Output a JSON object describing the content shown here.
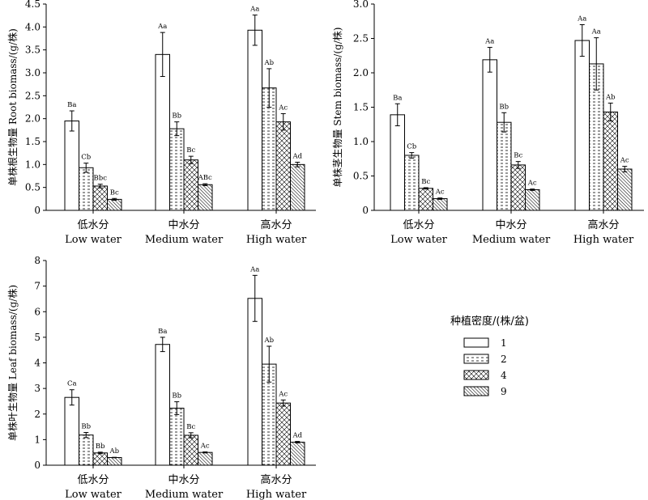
{
  "legend": {
    "title": "种植密度/(株/盆)",
    "items": [
      {
        "label": "1",
        "pattern": "empty"
      },
      {
        "label": "2",
        "pattern": "dashes"
      },
      {
        "label": "4",
        "pattern": "crosshatch"
      },
      {
        "label": "9",
        "pattern": "diagonal"
      }
    ]
  },
  "chart_data": [
    {
      "type": "bar",
      "ylabel": "单株根生物量 Root biomass/(g/株)",
      "ylim": [
        0,
        4.5
      ],
      "yticks": [
        "0",
        "0.5",
        "1.0",
        "1.5",
        "2.0",
        "2.5",
        "3.0",
        "3.5",
        "4.0",
        "4.5"
      ],
      "categories": [
        {
          "cn": "低水分",
          "en": "Low water"
        },
        {
          "cn": "中水分",
          "en": "Medium water"
        },
        {
          "cn": "高水分",
          "en": "High water"
        }
      ],
      "series": [
        {
          "name": "1",
          "values": [
            1.95,
            3.4,
            3.93
          ],
          "errors": [
            0.22,
            0.48,
            0.33
          ],
          "labels": [
            "Ba",
            "Aa",
            "Aa"
          ]
        },
        {
          "name": "2",
          "values": [
            0.93,
            1.78,
            2.67
          ],
          "errors": [
            0.1,
            0.15,
            0.42
          ],
          "labels": [
            "Cb",
            "Bb",
            "Ab"
          ]
        },
        {
          "name": "4",
          "values": [
            0.53,
            1.1,
            1.93
          ],
          "errors": [
            0.04,
            0.08,
            0.18
          ],
          "labels": [
            "Bbc",
            "Bc",
            "Ac"
          ]
        },
        {
          "name": "9",
          "values": [
            0.24,
            0.56,
            1.0
          ],
          "errors": [
            0.02,
            0.02,
            0.05
          ],
          "labels": [
            "Bc",
            "ABc",
            "Ad"
          ]
        }
      ]
    },
    {
      "type": "bar",
      "ylabel": "单株茎生物量 Stem biomass/(g/株)",
      "ylim": [
        0,
        3.0
      ],
      "yticks": [
        "0",
        "0.5",
        "1.0",
        "1.5",
        "2.0",
        "2.5",
        "3.0"
      ],
      "categories": [
        {
          "cn": "低水分",
          "en": "Low water"
        },
        {
          "cn": "中水分",
          "en": "Medium water"
        },
        {
          "cn": "高水分",
          "en": "High water"
        }
      ],
      "series": [
        {
          "name": "1",
          "values": [
            1.39,
            2.19,
            2.47
          ],
          "errors": [
            0.16,
            0.18,
            0.23
          ],
          "labels": [
            "Ba",
            "Aa",
            "Aa"
          ]
        },
        {
          "name": "2",
          "values": [
            0.8,
            1.28,
            2.13
          ],
          "errors": [
            0.04,
            0.14,
            0.38
          ],
          "labels": [
            "Cb",
            "Bb",
            "Aa"
          ]
        },
        {
          "name": "4",
          "values": [
            0.32,
            0.66,
            1.43
          ],
          "errors": [
            0.01,
            0.05,
            0.13
          ],
          "labels": [
            "Bc",
            "Bc",
            "Ab"
          ]
        },
        {
          "name": "9",
          "values": [
            0.17,
            0.3,
            0.6
          ],
          "errors": [
            0.01,
            0.01,
            0.04
          ],
          "labels": [
            "Ac",
            "Ac",
            "Ac"
          ]
        }
      ]
    },
    {
      "type": "bar",
      "ylabel": "单株叶生物量 Leaf biomass/(g/株)",
      "ylim": [
        0,
        8
      ],
      "yticks": [
        "0",
        "1",
        "2",
        "3",
        "4",
        "5",
        "6",
        "7",
        "8"
      ],
      "categories": [
        {
          "cn": "低水分",
          "en": "Low water"
        },
        {
          "cn": "中水分",
          "en": "Medium water"
        },
        {
          "cn": "高水分",
          "en": "High water"
        }
      ],
      "series": [
        {
          "name": "1",
          "values": [
            2.65,
            4.72,
            6.52
          ],
          "errors": [
            0.3,
            0.28,
            0.9
          ],
          "labels": [
            "Ca",
            "Ba",
            "Aa"
          ]
        },
        {
          "name": "2",
          "values": [
            1.18,
            2.23,
            3.95
          ],
          "errors": [
            0.1,
            0.25,
            0.7
          ],
          "labels": [
            "Bb",
            "Bb",
            "Ab"
          ]
        },
        {
          "name": "4",
          "values": [
            0.48,
            1.17,
            2.43
          ],
          "errors": [
            0.03,
            0.1,
            0.12
          ],
          "labels": [
            "Bb",
            "Bc",
            "Ac"
          ]
        },
        {
          "name": "9",
          "values": [
            0.3,
            0.5,
            0.9
          ],
          "errors": [
            0.01,
            0.02,
            0.03
          ],
          "labels": [
            "Ab",
            "Ac",
            "Ad"
          ]
        }
      ]
    }
  ]
}
